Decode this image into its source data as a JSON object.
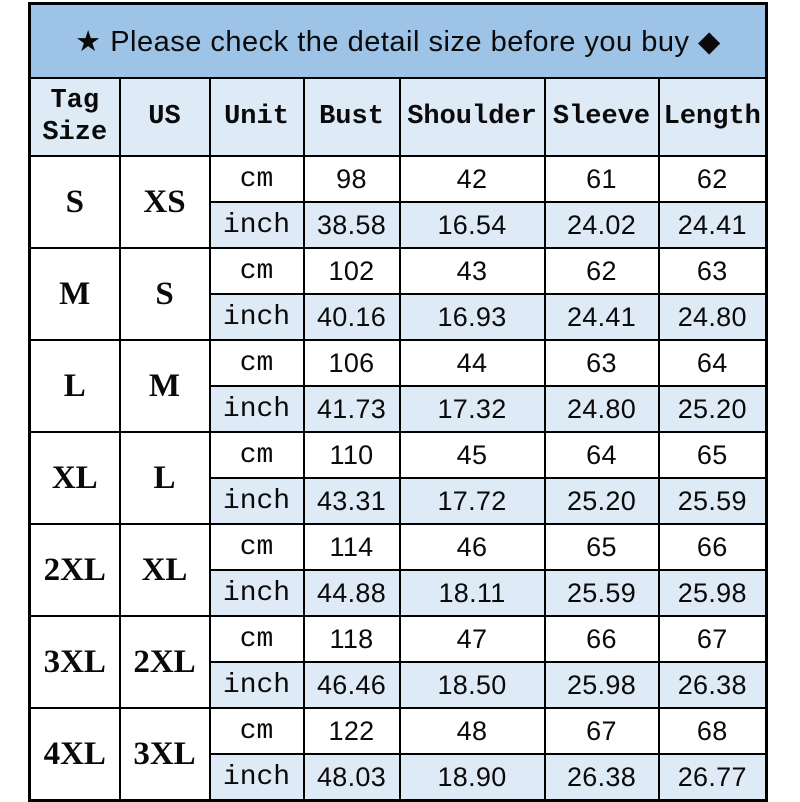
{
  "banner": {
    "star_icon": "★",
    "diamond_icon": "◆",
    "text": "★ Please check the detail size before you buy ◆"
  },
  "colors": {
    "banner_bg": "#9dc3e6",
    "row_highlight_bg": "#deeaf6",
    "row_plain_bg": "#ffffff",
    "border": "#000000",
    "text": "#0a0a0a"
  },
  "table": {
    "headers": [
      "Tag Size",
      "US",
      "Unit",
      "Bust",
      "Shoulder",
      "Sleeve",
      "Length"
    ],
    "unit_labels": {
      "cm": "cm",
      "inch": "inch"
    },
    "rows": [
      {
        "tag": "S",
        "us": "XS",
        "cm": [
          "98",
          "42",
          "61",
          "62"
        ],
        "inch": [
          "38.58",
          "16.54",
          "24.02",
          "24.41"
        ]
      },
      {
        "tag": "M",
        "us": "S",
        "cm": [
          "102",
          "43",
          "62",
          "63"
        ],
        "inch": [
          "40.16",
          "16.93",
          "24.41",
          "24.80"
        ]
      },
      {
        "tag": "L",
        "us": "M",
        "cm": [
          "106",
          "44",
          "63",
          "64"
        ],
        "inch": [
          "41.73",
          "17.32",
          "24.80",
          "25.20"
        ]
      },
      {
        "tag": "XL",
        "us": "L",
        "cm": [
          "110",
          "45",
          "64",
          "65"
        ],
        "inch": [
          "43.31",
          "17.72",
          "25.20",
          "25.59"
        ]
      },
      {
        "tag": "2XL",
        "us": "XL",
        "cm": [
          "114",
          "46",
          "65",
          "66"
        ],
        "inch": [
          "44.88",
          "18.11",
          "25.59",
          "25.98"
        ]
      },
      {
        "tag": "3XL",
        "us": "2XL",
        "cm": [
          "118",
          "47",
          "66",
          "67"
        ],
        "inch": [
          "46.46",
          "18.50",
          "25.98",
          "26.38"
        ]
      },
      {
        "tag": "4XL",
        "us": "3XL",
        "cm": [
          "122",
          "48",
          "67",
          "68"
        ],
        "inch": [
          "48.03",
          "18.90",
          "26.38",
          "26.77"
        ]
      }
    ]
  },
  "chart_data": {
    "type": "table",
    "title": "Garment size chart",
    "columns": [
      "Tag Size",
      "US",
      "Unit",
      "Bust",
      "Shoulder",
      "Sleeve",
      "Length"
    ],
    "rows": [
      [
        "S",
        "XS",
        "cm",
        "98",
        "42",
        "61",
        "62"
      ],
      [
        "S",
        "XS",
        "inch",
        "38.58",
        "16.54",
        "24.02",
        "24.41"
      ],
      [
        "M",
        "S",
        "cm",
        "102",
        "43",
        "62",
        "63"
      ],
      [
        "M",
        "S",
        "inch",
        "40.16",
        "16.93",
        "24.41",
        "24.80"
      ],
      [
        "L",
        "M",
        "cm",
        "106",
        "44",
        "63",
        "64"
      ],
      [
        "L",
        "M",
        "inch",
        "41.73",
        "17.32",
        "24.80",
        "25.20"
      ],
      [
        "XL",
        "L",
        "cm",
        "110",
        "45",
        "64",
        "65"
      ],
      [
        "XL",
        "L",
        "inch",
        "43.31",
        "17.72",
        "25.20",
        "25.59"
      ],
      [
        "2XL",
        "XL",
        "cm",
        "114",
        "46",
        "65",
        "66"
      ],
      [
        "2XL",
        "XL",
        "inch",
        "44.88",
        "18.11",
        "25.59",
        "25.98"
      ],
      [
        "3XL",
        "2XL",
        "cm",
        "118",
        "47",
        "66",
        "67"
      ],
      [
        "3XL",
        "2XL",
        "inch",
        "46.46",
        "18.50",
        "25.98",
        "26.38"
      ],
      [
        "4XL",
        "3XL",
        "cm",
        "122",
        "48",
        "67",
        "68"
      ],
      [
        "4XL",
        "3XL",
        "inch",
        "48.03",
        "18.90",
        "26.38",
        "26.77"
      ]
    ]
  }
}
